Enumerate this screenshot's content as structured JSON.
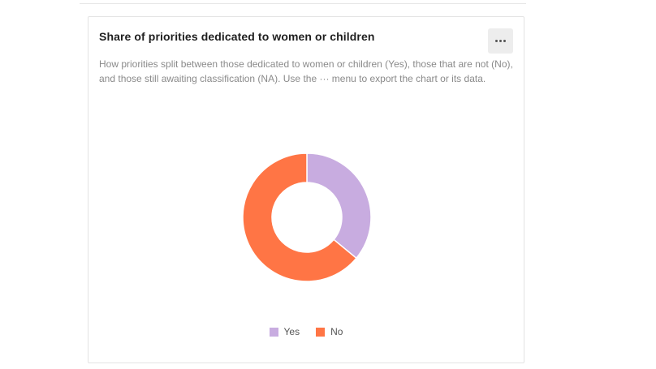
{
  "card": {
    "title": "Share of priorities dedicated to women or children",
    "description": "How priorities split between those dedicated to women or children (Yes), those that are not (No), and those still awaiting classification (NA). Use the ··· menu to export the chart or its data.",
    "menu_icon": "more-horizontal-icon"
  },
  "colors": {
    "yes": "#c8ace0",
    "no": "#ff7545"
  },
  "chart_data": {
    "type": "pie",
    "donut": true,
    "title": "",
    "categories": [
      "Yes",
      "No"
    ],
    "values": [
      36,
      64
    ],
    "legend": [
      "Yes",
      "No"
    ],
    "legend_placement": "bottom-center"
  }
}
